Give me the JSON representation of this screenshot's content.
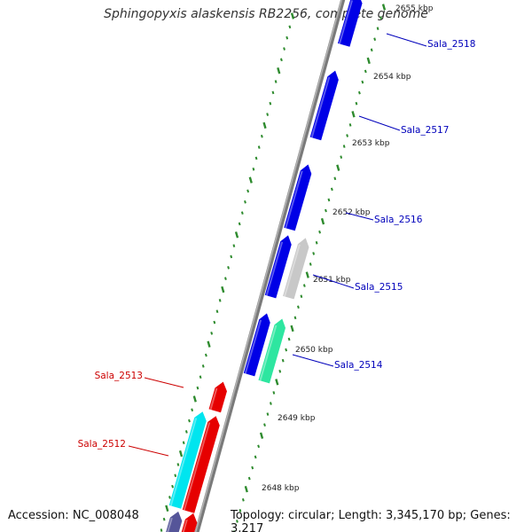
{
  "title": "Sphingopyxis alaskensis RB2256, complete genome",
  "footer": {
    "accession": "Accession: NC_008048",
    "summary": "Topology: circular; Length: 3,345,170 bp; Genes: 3,217"
  },
  "colors": {
    "backbone": "#8a8a8a",
    "forward_gene": "#0000e6",
    "reverse_gene": "#e60000",
    "ticks": "#2e8b2e",
    "label_forward": "#0000bb",
    "label_reverse": "#cc0000",
    "cyan_feature": "#00e5ef",
    "mint_feature": "#2ee6a0",
    "grey_feature": "#c8c8c8",
    "dark_feature": "#555599"
  },
  "scale_labels": [
    "2655 kbp",
    "2654 kbp",
    "2653 kbp",
    "2652 kbp",
    "2651 kbp",
    "2650 kbp",
    "2649 kbp",
    "2648 kbp"
  ],
  "gene_labels": [
    {
      "text": "Sala_2518",
      "strand": "forward"
    },
    {
      "text": "Sala_2517",
      "strand": "forward"
    },
    {
      "text": "Sala_2516",
      "strand": "forward"
    },
    {
      "text": "Sala_2515",
      "strand": "forward"
    },
    {
      "text": "Sala_2514",
      "strand": "forward"
    },
    {
      "text": "Sala_2513",
      "strand": "reverse"
    },
    {
      "text": "Sala_2512",
      "strand": "reverse"
    }
  ]
}
